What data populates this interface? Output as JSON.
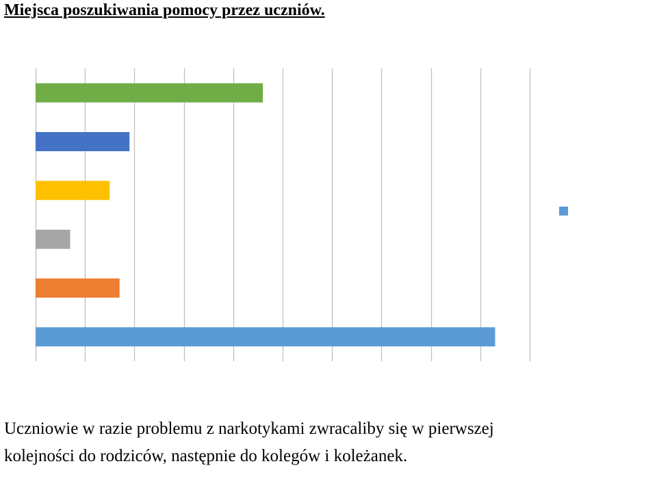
{
  "heading": "Miejsca poszukiwania pomocy przez uczniów.",
  "chart_data": {
    "type": "bar",
    "orientation": "horizontal",
    "grid": true,
    "xlim": [
      0,
      10
    ],
    "categories": [
      "",
      "",
      "",
      "",
      "",
      ""
    ],
    "values": [
      9.3,
      1.7,
      0.7,
      1.5,
      1.9,
      4.6
    ],
    "colors": [
      "#5b9bd5",
      "#ed7d31",
      "#a5a5a5",
      "#ffc000",
      "#4472c4",
      "#70ad47"
    ],
    "legend": {
      "placement": "right",
      "entries": [
        {
          "name": "",
          "color": "#5b9bd5"
        }
      ]
    }
  },
  "body_text": {
    "line1": "Uczniowie w razie problemu z narkotykami zwracaliby się w pierwszej",
    "line2": "kolejności do rodziców, następnie do kolegów i koleżanek."
  }
}
